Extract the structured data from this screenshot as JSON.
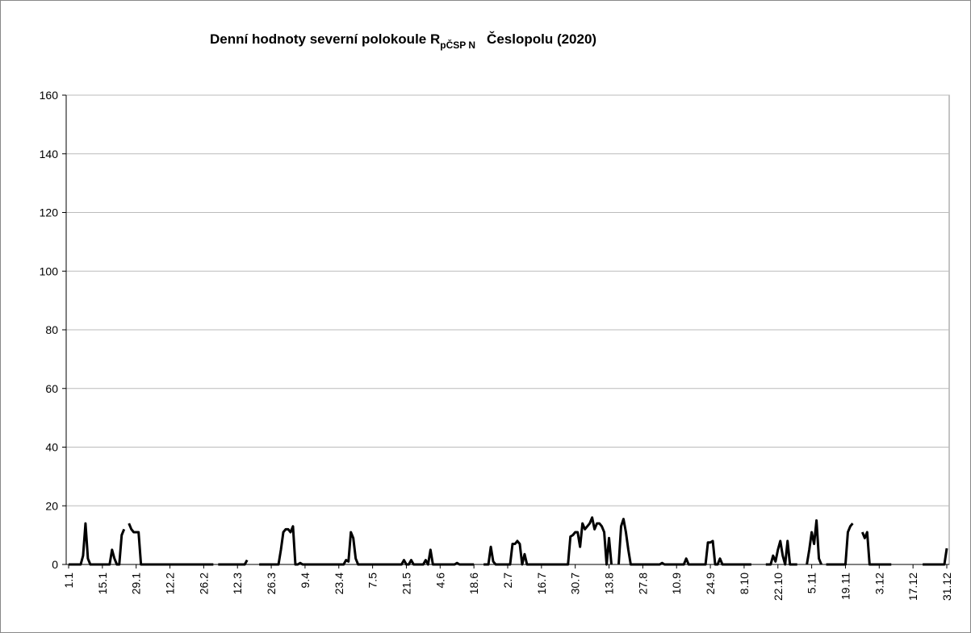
{
  "chart_data": {
    "type": "line",
    "title": "Denní hodnoty severní polokoule R",
    "title_subscript": "pČSP N",
    "title_suffix": "Česlopolu (2020)",
    "color": "#000000",
    "grid": true,
    "ylim": [
      0,
      160
    ],
    "yticks": [
      0,
      20,
      40,
      60,
      80,
      100,
      120,
      140,
      160
    ],
    "categories": [
      "1.1",
      null,
      null,
      null,
      null,
      null,
      null,
      null,
      null,
      null,
      null,
      null,
      null,
      null,
      "15.1",
      null,
      null,
      null,
      null,
      null,
      null,
      null,
      null,
      null,
      null,
      null,
      null,
      null,
      "29.1",
      null,
      null,
      null,
      null,
      null,
      null,
      null,
      null,
      null,
      null,
      null,
      null,
      null,
      "12.2",
      null,
      null,
      null,
      null,
      null,
      null,
      null,
      null,
      null,
      null,
      null,
      null,
      null,
      "26.2",
      null,
      null,
      null,
      null,
      null,
      null,
      null,
      null,
      null,
      null,
      null,
      null,
      null,
      "12.3",
      null,
      null,
      null,
      null,
      null,
      null,
      null,
      null,
      null,
      null,
      null,
      null,
      null,
      "26.3",
      null,
      null,
      null,
      null,
      null,
      null,
      null,
      null,
      null,
      null,
      null,
      null,
      null,
      "9.4",
      null,
      null,
      null,
      null,
      null,
      null,
      null,
      null,
      null,
      null,
      null,
      null,
      null,
      "23.4",
      null,
      null,
      null,
      null,
      null,
      null,
      null,
      null,
      null,
      null,
      null,
      null,
      null,
      "7.5",
      null,
      null,
      null,
      null,
      null,
      null,
      null,
      null,
      null,
      null,
      null,
      null,
      null,
      "21.5",
      null,
      null,
      null,
      null,
      null,
      null,
      null,
      null,
      null,
      null,
      null,
      null,
      null,
      "4.6",
      null,
      null,
      null,
      null,
      null,
      null,
      null,
      null,
      null,
      null,
      null,
      null,
      null,
      "18.6",
      null,
      null,
      null,
      null,
      null,
      null,
      null,
      null,
      null,
      null,
      null,
      null,
      null,
      "2.7",
      null,
      null,
      null,
      null,
      null,
      null,
      null,
      null,
      null,
      null,
      null,
      null,
      null,
      "16.7",
      null,
      null,
      null,
      null,
      null,
      null,
      null,
      null,
      null,
      null,
      null,
      null,
      null,
      "30.7",
      null,
      null,
      null,
      null,
      null,
      null,
      null,
      null,
      null,
      null,
      null,
      null,
      null,
      "13.8",
      null,
      null,
      null,
      null,
      null,
      null,
      null,
      null,
      null,
      null,
      null,
      null,
      null,
      "27.8",
      null,
      null,
      null,
      null,
      null,
      null,
      null,
      null,
      null,
      null,
      null,
      null,
      null,
      "10.9",
      null,
      null,
      null,
      null,
      null,
      null,
      null,
      null,
      null,
      null,
      null,
      null,
      null,
      "24.9",
      null,
      null,
      null,
      null,
      null,
      null,
      null,
      null,
      null,
      null,
      null,
      null,
      null,
      "8.10",
      null,
      null,
      null,
      null,
      null,
      null,
      null,
      null,
      null,
      null,
      null,
      null,
      null,
      "22.10",
      null,
      null,
      null,
      null,
      null,
      null,
      null,
      null,
      null,
      null,
      null,
      null,
      null,
      "5.11",
      null,
      null,
      null,
      null,
      null,
      null,
      null,
      null,
      null,
      null,
      null,
      null,
      null,
      "19.11",
      null,
      null,
      null,
      null,
      null,
      null,
      null,
      null,
      null,
      null,
      null,
      null,
      null,
      "3.12",
      null,
      null,
      null,
      null,
      null,
      null,
      null,
      null,
      null,
      null,
      null,
      null,
      null,
      "17.12",
      null,
      null,
      null,
      null,
      null,
      null,
      null,
      null,
      null,
      null,
      null,
      null,
      null,
      "31.12"
    ],
    "values": [
      0,
      0,
      0,
      0,
      0,
      0,
      3,
      14,
      2,
      0,
      0,
      0,
      0,
      0,
      0,
      0,
      0,
      0,
      5,
      2,
      0,
      0,
      10,
      12,
      null,
      14,
      12,
      11,
      11,
      11,
      0,
      0,
      0,
      0,
      0,
      0,
      0,
      0,
      0,
      0,
      0,
      0,
      0,
      0,
      0,
      0,
      0,
      0,
      0,
      0,
      0,
      0,
      0,
      0,
      0,
      0,
      0,
      0,
      0,
      0,
      0,
      null,
      0,
      0,
      0,
      0,
      0,
      0,
      0,
      0,
      0,
      0,
      0,
      0,
      1.5,
      null,
      1,
      null,
      null,
      0,
      0,
      0,
      0,
      0,
      0,
      0,
      0,
      0,
      5,
      11,
      12,
      12,
      11,
      13,
      0,
      0,
      0.5,
      0,
      0,
      0,
      0,
      0,
      0,
      0,
      0,
      0,
      0,
      0,
      0,
      0,
      0,
      0,
      0,
      0,
      0,
      1.5,
      1,
      11,
      9,
      2,
      0,
      0,
      0,
      0,
      0,
      0,
      0,
      0,
      0,
      0,
      0,
      0,
      0,
      0,
      0,
      0,
      0,
      0,
      0,
      1.5,
      0,
      0,
      1.5,
      0,
      0,
      0,
      0,
      0,
      1.5,
      0,
      5,
      0,
      0,
      0,
      0,
      0,
      0,
      0,
      0,
      0,
      0,
      0.5,
      0,
      0,
      0,
      0,
      0,
      0,
      0,
      null,
      null,
      null,
      0,
      0,
      0,
      6,
      1,
      0,
      0,
      0,
      0,
      0,
      0,
      0,
      7,
      7,
      8,
      7,
      0,
      3.5,
      0,
      0,
      0,
      0,
      0,
      0,
      0,
      0,
      0,
      0,
      0,
      0,
      0,
      0,
      0,
      0,
      0,
      0,
      9.5,
      10,
      11,
      11,
      6,
      14,
      12,
      13,
      14,
      16,
      12,
      14,
      14,
      13,
      11,
      0,
      9,
      0,
      null,
      null,
      0,
      13,
      15.5,
      11,
      5,
      0,
      0,
      0,
      0,
      0,
      0,
      0,
      0,
      0,
      0,
      0,
      0,
      0,
      0.5,
      0,
      0,
      0,
      0,
      0,
      0,
      0,
      0,
      0,
      2,
      0,
      0,
      0,
      0,
      0,
      0,
      0,
      0,
      7.5,
      7.5,
      8,
      0,
      0,
      2,
      0,
      0,
      0,
      0,
      0,
      0,
      0,
      0,
      0,
      0,
      0,
      0,
      0,
      null,
      null,
      null,
      null,
      null,
      0,
      0,
      0,
      3,
      1,
      5,
      8,
      3,
      0,
      8,
      0,
      0,
      0,
      0,
      null,
      null,
      null,
      0,
      5,
      11,
      7,
      15,
      2,
      0,
      null,
      0,
      0,
      0,
      0,
      0,
      0,
      0,
      0,
      0,
      11,
      13,
      14,
      null,
      null,
      null,
      11,
      9,
      11,
      0,
      0,
      0,
      0,
      0,
      0,
      0,
      0,
      0,
      0,
      null,
      null,
      null,
      null,
      null,
      null,
      null,
      null,
      null,
      null,
      null,
      null,
      0,
      0,
      0,
      0,
      0,
      0,
      0,
      0,
      0,
      0,
      5.5
    ]
  }
}
